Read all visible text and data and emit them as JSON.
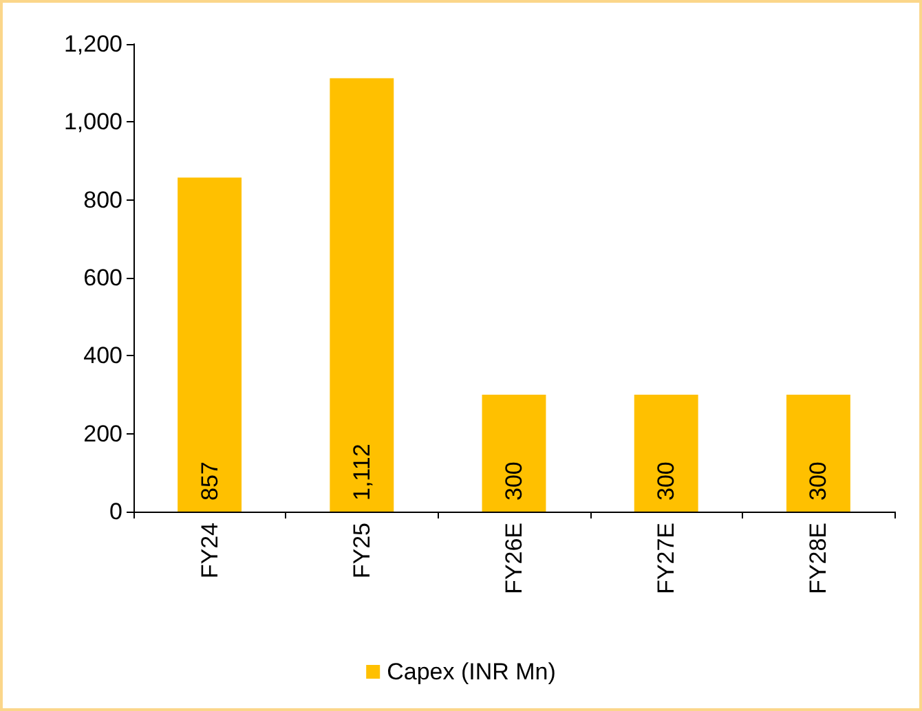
{
  "chart_data": {
    "type": "bar",
    "categories": [
      "FY24",
      "FY25",
      "FY26E",
      "FY27E",
      "FY28E"
    ],
    "series": [
      {
        "name": "Capex (INR Mn)",
        "color": "#ffc000",
        "values": [
          857,
          1112,
          300,
          300,
          300
        ],
        "value_labels": [
          "857",
          "1,112",
          "300",
          "300",
          "300"
        ]
      }
    ],
    "ylim": [
      0,
      1200
    ],
    "yticks": [
      0,
      200,
      400,
      600,
      800,
      {
        "value": 1000,
        "label": "1,000"
      },
      {
        "value": 1200,
        "label": "1,200"
      }
    ],
    "grid": false,
    "legend": "bottom"
  }
}
